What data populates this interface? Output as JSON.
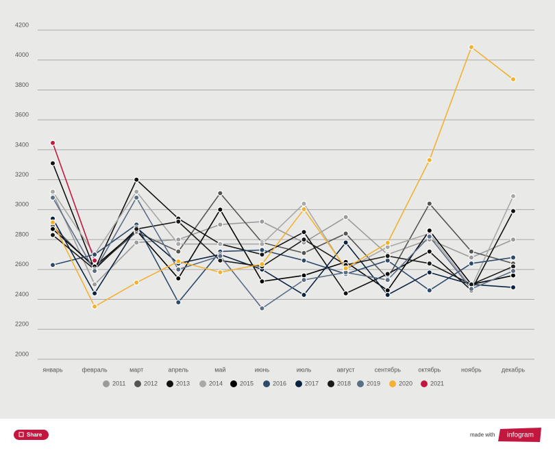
{
  "chart_data": {
    "type": "line",
    "categories": [
      "январь",
      "февраль",
      "март",
      "апрель",
      "май",
      "июнь",
      "июль",
      "август",
      "сентябрь",
      "октябрь",
      "ноябрь",
      "декабрь"
    ],
    "ylim": [
      2000,
      4200
    ],
    "yticks": [
      2000,
      2200,
      2400,
      2600,
      2800,
      3000,
      3200,
      3400,
      3600,
      3800,
      4000,
      4200
    ],
    "grid": true,
    "series": [
      {
        "name": "2011",
        "color": "#9b9b9b",
        "values": [
          3110,
          2500,
          2780,
          2800,
          2900,
          2920,
          2780,
          2950,
          2700,
          2800,
          2680,
          2800
        ]
      },
      {
        "name": "2012",
        "color": "#555555",
        "values": [
          2890,
          2610,
          2850,
          2720,
          3110,
          2780,
          2710,
          2840,
          2540,
          3040,
          2720,
          2640
        ]
      },
      {
        "name": "2013",
        "color": "#111111",
        "values": [
          3310,
          2600,
          3200,
          2940,
          2770,
          2700,
          2850,
          2440,
          2570,
          2720,
          2460,
          2990
        ]
      },
      {
        "name": "2014",
        "color": "#a8a8a8",
        "values": [
          3120,
          2700,
          3120,
          2770,
          2770,
          2770,
          3040,
          2600,
          2750,
          2840,
          2480,
          3090
        ]
      },
      {
        "name": "2015",
        "color": "#000000",
        "values": [
          2870,
          2620,
          2860,
          2540,
          3000,
          2520,
          2560,
          2650,
          2460,
          2860,
          2500,
          2560
        ]
      },
      {
        "name": "2016",
        "color": "#2e4a6b",
        "values": [
          2630,
          2700,
          2900,
          2380,
          2720,
          2730,
          2660,
          2570,
          2660,
          2460,
          2640,
          2680
        ]
      },
      {
        "name": "2017",
        "color": "#0c2340",
        "values": [
          2940,
          2440,
          2880,
          2640,
          2700,
          2600,
          2430,
          2780,
          2430,
          2580,
          2500,
          2480
        ]
      },
      {
        "name": "2018",
        "color": "#1a1a1a",
        "values": [
          2830,
          2600,
          2870,
          2920,
          2660,
          2620,
          2800,
          2630,
          2690,
          2640,
          2500,
          2620
        ]
      },
      {
        "name": "2019",
        "color": "#5a6e86",
        "values": [
          3080,
          2590,
          3080,
          2600,
          2690,
          2340,
          2530,
          2580,
          2530,
          2820,
          2470,
          2590
        ]
      },
      {
        "name": "2020",
        "color": "#f2b230",
        "values": [
          2915,
          2352,
          2512,
          2654,
          2581,
          2636,
          3002,
          2608,
          2778,
          3331,
          4086,
          3871
        ]
      },
      {
        "name": "2021",
        "color": "#c2183f",
        "values": [
          3446,
          2660,
          null,
          null,
          null,
          null,
          null,
          null,
          null,
          null,
          null,
          null
        ]
      }
    ]
  },
  "footer": {
    "share": "Share",
    "made_with": "made with",
    "brand": "infogram"
  }
}
